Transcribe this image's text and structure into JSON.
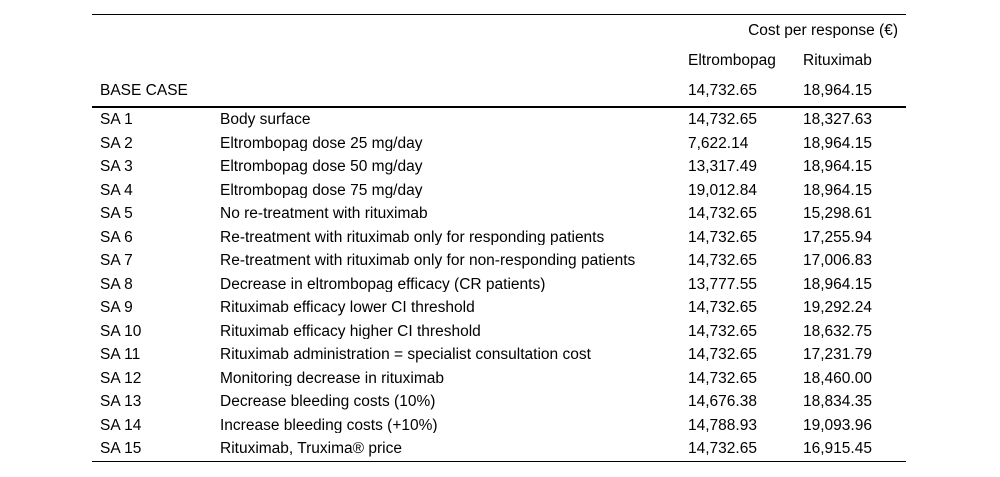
{
  "table": {
    "group_header": "Cost per response (€)",
    "columns": [
      "Eltrombopag",
      "Rituximab"
    ],
    "base_case": {
      "label": "BASE CASE",
      "eltrombopag": "14,732.65",
      "rituximab": "18,964.15"
    },
    "rows": [
      {
        "id": "SA 1",
        "description": "Body surface",
        "eltrombopag": "14,732.65",
        "rituximab": "18,327.63"
      },
      {
        "id": "SA 2",
        "description": "Eltrombopag dose 25 mg/day",
        "eltrombopag": "7,622.14",
        "rituximab": "18,964.15"
      },
      {
        "id": "SA 3",
        "description": "Eltrombopag dose 50 mg/day",
        "eltrombopag": "13,317.49",
        "rituximab": "18,964.15"
      },
      {
        "id": "SA 4",
        "description": "Eltrombopag dose 75 mg/day",
        "eltrombopag": "19,012.84",
        "rituximab": "18,964.15"
      },
      {
        "id": "SA 5",
        "description": "No re-treatment with rituximab",
        "eltrombopag": "14,732.65",
        "rituximab": "15,298.61"
      },
      {
        "id": "SA 6",
        "description": "Re-treatment with rituximab only for responding patients",
        "eltrombopag": "14,732.65",
        "rituximab": "17,255.94"
      },
      {
        "id": "SA 7",
        "description": "Re-treatment with rituximab only for non-responding patients",
        "eltrombopag": "14,732.65",
        "rituximab": "17,006.83"
      },
      {
        "id": "SA 8",
        "description": "Decrease in eltrombopag efficacy (CR patients)",
        "eltrombopag": "13,777.55",
        "rituximab": "18,964.15"
      },
      {
        "id": "SA 9",
        "description": "Rituximab efficacy lower CI threshold",
        "eltrombopag": "14,732.65",
        "rituximab": "19,292.24"
      },
      {
        "id": "SA 10",
        "description": "Rituximab efficacy higher CI threshold",
        "eltrombopag": "14,732.65",
        "rituximab": "18,632.75"
      },
      {
        "id": "SA 11",
        "description": "Rituximab administration = specialist consultation cost",
        "eltrombopag": "14,732.65",
        "rituximab": "17,231.79"
      },
      {
        "id": "SA 12",
        "description": "Monitoring decrease in rituximab",
        "eltrombopag": "14,732.65",
        "rituximab": "18,460.00"
      },
      {
        "id": "SA 13",
        "description": "Decrease bleeding costs (10%)",
        "eltrombopag": "14,676.38",
        "rituximab": "18,834.35"
      },
      {
        "id": "SA 14",
        "description": "Increase bleeding costs (+10%)",
        "eltrombopag": "14,788.93",
        "rituximab": "19,093.96"
      },
      {
        "id": "SA 15",
        "description": "Rituximab, Truxima® price",
        "eltrombopag": "14,732.65",
        "rituximab": "16,915.45"
      }
    ]
  }
}
